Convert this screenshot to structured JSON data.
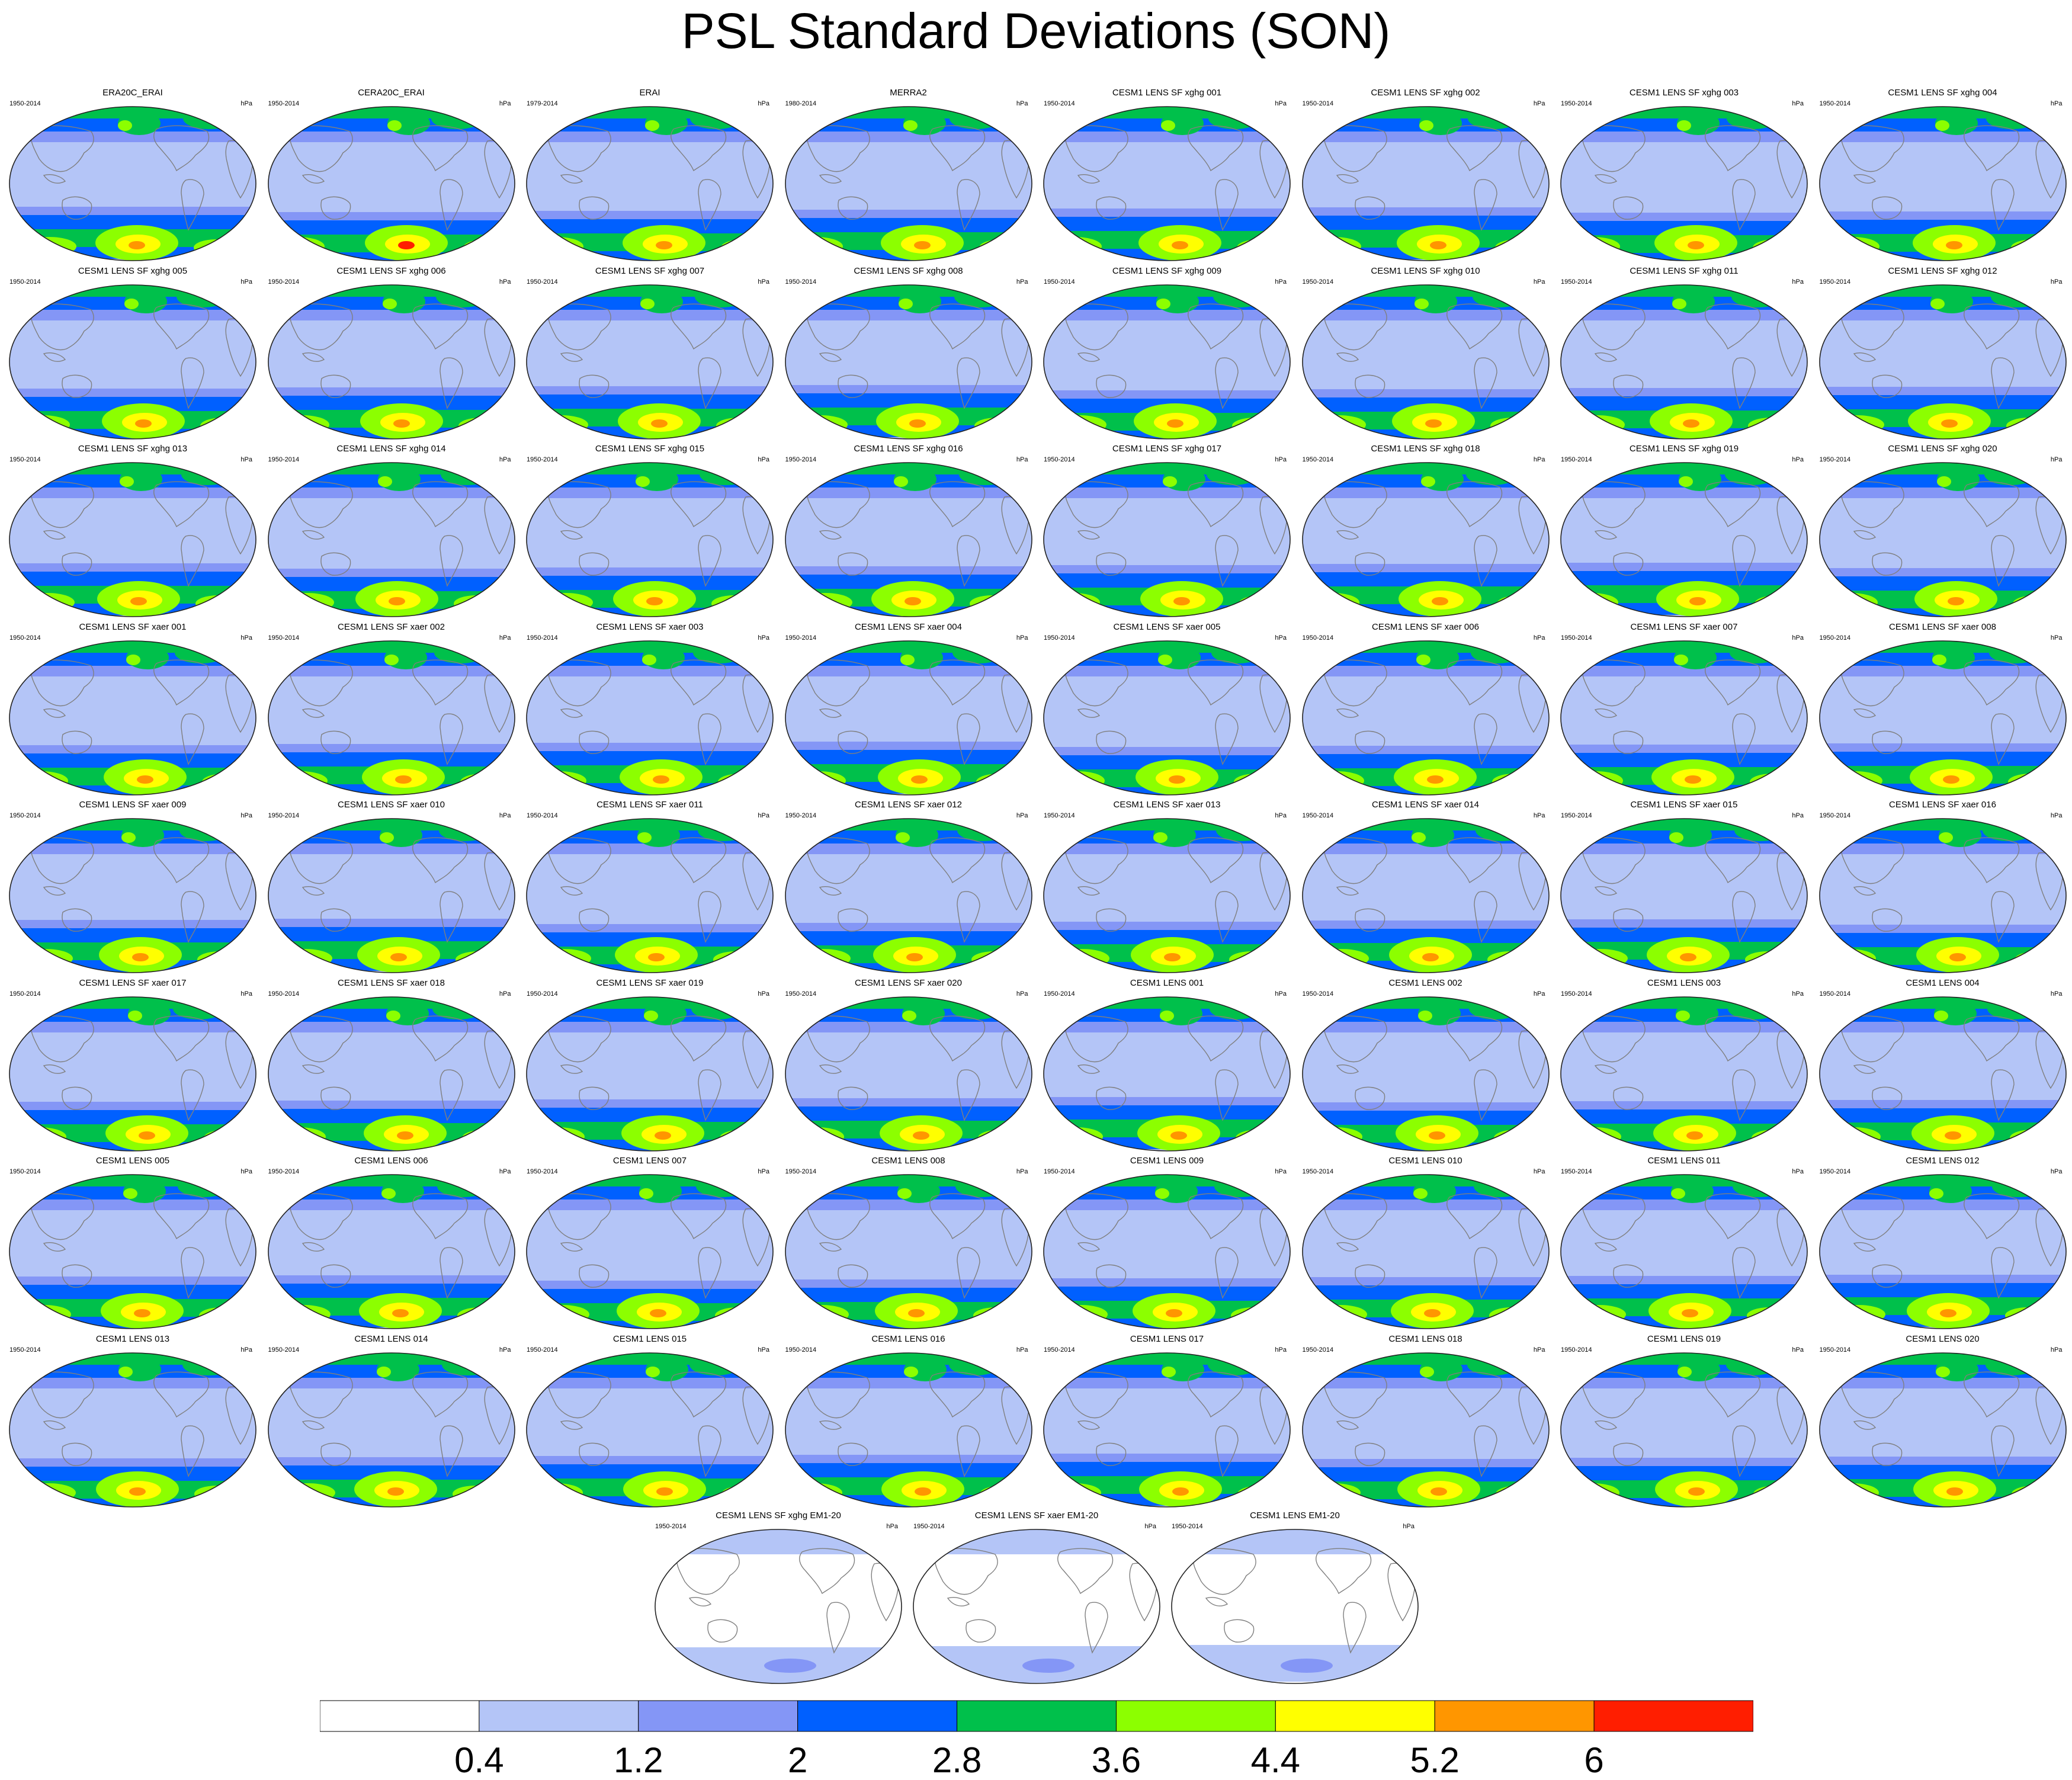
{
  "title": "PSL Standard Deviations (SON)",
  "units": "hPa",
  "colors": {
    "levels": [
      "#ffffff",
      "#b4c5f7",
      "#8496f6",
      "#0060ff",
      "#00c04b",
      "#8cff00",
      "#ffff00",
      "#ff9600",
      "#ff1e00"
    ],
    "coastline": "#7f7f7f"
  },
  "colorbar": {
    "labels": [
      "0.4",
      "1.2",
      "2",
      "2.8",
      "3.6",
      "4.4",
      "5.2",
      "6"
    ]
  },
  "chart_data": {
    "type": "heatmap",
    "title": "PSL Standard Deviations (SON)",
    "variable": "PSL",
    "season": "SON",
    "statistic": "Standard Deviation",
    "units": "hPa",
    "contour_levels": [
      0.4,
      1.2,
      2,
      2.8,
      3.6,
      4.4,
      5.2,
      6
    ],
    "panels": [
      {
        "name": "ERA20C_ERAI",
        "years": "1950-2014",
        "peak": 5.6
      },
      {
        "name": "CERA20C_ERAI",
        "years": "1950-2014",
        "peak": 6.2
      },
      {
        "name": "ERAI",
        "years": "1979-2014",
        "peak": 5.6
      },
      {
        "name": "MERRA2",
        "years": "1980-2014",
        "peak": 5.6
      },
      {
        "name": "CESM1 LENS SF xghg 001",
        "years": "1950-2014",
        "peak": 5.6
      },
      {
        "name": "CESM1 LENS SF xghg 002",
        "years": "1950-2014",
        "peak": 5.2
      },
      {
        "name": "CESM1 LENS SF xghg 003",
        "years": "1950-2014",
        "peak": 5.2
      },
      {
        "name": "CESM1 LENS SF xghg 004",
        "years": "1950-2014",
        "peak": 5.2
      },
      {
        "name": "CESM1 LENS SF xghg 005",
        "years": "1950-2014",
        "peak": 5.6
      },
      {
        "name": "CESM1 LENS SF xghg 006",
        "years": "1950-2014",
        "peak": 5.2
      },
      {
        "name": "CESM1 LENS SF xghg 007",
        "years": "1950-2014",
        "peak": 5.2
      },
      {
        "name": "CESM1 LENS SF xghg 008",
        "years": "1950-2014",
        "peak": 5.2
      },
      {
        "name": "CESM1 LENS SF xghg 009",
        "years": "1950-2014",
        "peak": 5.2
      },
      {
        "name": "CESM1 LENS SF xghg 010",
        "years": "1950-2014",
        "peak": 5.2
      },
      {
        "name": "CESM1 LENS SF xghg 011",
        "years": "1950-2014",
        "peak": 5.2
      },
      {
        "name": "CESM1 LENS SF xghg 012",
        "years": "1950-2014",
        "peak": 5.2
      },
      {
        "name": "CESM1 LENS SF xghg 013",
        "years": "1950-2014",
        "peak": 5.2
      },
      {
        "name": "CESM1 LENS SF xghg 014",
        "years": "1950-2014",
        "peak": 5.6
      },
      {
        "name": "CESM1 LENS SF xghg 015",
        "years": "1950-2014",
        "peak": 5.2
      },
      {
        "name": "CESM1 LENS SF xghg 016",
        "years": "1950-2014",
        "peak": 5.6
      },
      {
        "name": "CESM1 LENS SF xghg 017",
        "years": "1950-2014",
        "peak": 5.6
      },
      {
        "name": "CESM1 LENS SF xghg 018",
        "years": "1950-2014",
        "peak": 5.2
      },
      {
        "name": "CESM1 LENS SF xghg 019",
        "years": "1950-2014",
        "peak": 5.6
      },
      {
        "name": "CESM1 LENS SF xghg 020",
        "years": "1950-2014",
        "peak": 5.2
      },
      {
        "name": "CESM1 LENS SF xaer 001",
        "years": "1950-2014",
        "peak": 5.2
      },
      {
        "name": "CESM1 LENS SF xaer 002",
        "years": "1950-2014",
        "peak": 5.2
      },
      {
        "name": "CESM1 LENS SF xaer 003",
        "years": "1950-2014",
        "peak": 5.6
      },
      {
        "name": "CESM1 LENS SF xaer 004",
        "years": "1950-2014",
        "peak": 5.2
      },
      {
        "name": "CESM1 LENS SF xaer 005",
        "years": "1950-2014",
        "peak": 5.6
      },
      {
        "name": "CESM1 LENS SF xaer 006",
        "years": "1950-2014",
        "peak": 5.2
      },
      {
        "name": "CESM1 LENS SF xaer 007",
        "years": "1950-2014",
        "peak": 5.2
      },
      {
        "name": "CESM1 LENS SF xaer 008",
        "years": "1950-2014",
        "peak": 5.2
      },
      {
        "name": "CESM1 LENS SF xaer 009",
        "years": "1950-2014",
        "peak": 5.6
      },
      {
        "name": "CESM1 LENS SF xaer 010",
        "years": "1950-2014",
        "peak": 5.2
      },
      {
        "name": "CESM1 LENS SF xaer 011",
        "years": "1950-2014",
        "peak": 5.2
      },
      {
        "name": "CESM1 LENS SF xaer 012",
        "years": "1950-2014",
        "peak": 5.2
      },
      {
        "name": "CESM1 LENS SF xaer 013",
        "years": "1950-2014",
        "peak": 5.2
      },
      {
        "name": "CESM1 LENS SF xaer 014",
        "years": "1950-2014",
        "peak": 5.2
      },
      {
        "name": "CESM1 LENS SF xaer 015",
        "years": "1950-2014",
        "peak": 5.2
      },
      {
        "name": "CESM1 LENS SF xaer 016",
        "years": "1950-2014",
        "peak": 5.2
      },
      {
        "name": "CESM1 LENS SF xaer 017",
        "years": "1950-2014",
        "peak": 5.6
      },
      {
        "name": "CESM1 LENS SF xaer 018",
        "years": "1950-2014",
        "peak": 5.2
      },
      {
        "name": "CESM1 LENS SF xaer 019",
        "years": "1950-2014",
        "peak": 5.6
      },
      {
        "name": "CESM1 LENS SF xaer 020",
        "years": "1950-2014",
        "peak": 5.2
      },
      {
        "name": "CESM1 LENS 001",
        "years": "1950-2014",
        "peak": 5.2
      },
      {
        "name": "CESM1 LENS 002",
        "years": "1950-2014",
        "peak": 5.2
      },
      {
        "name": "CESM1 LENS 003",
        "years": "1950-2014",
        "peak": 5.2
      },
      {
        "name": "CESM1 LENS 004",
        "years": "1950-2014",
        "peak": 5.6
      },
      {
        "name": "CESM1 LENS 005",
        "years": "1950-2014",
        "peak": 5.6
      },
      {
        "name": "CESM1 LENS 006",
        "years": "1950-2014",
        "peak": 5.6
      },
      {
        "name": "CESM1 LENS 007",
        "years": "1950-2014",
        "peak": 5.6
      },
      {
        "name": "CESM1 LENS 008",
        "years": "1950-2014",
        "peak": 5.2
      },
      {
        "name": "CESM1 LENS 009",
        "years": "1950-2014",
        "peak": 5.2
      },
      {
        "name": "CESM1 LENS 010",
        "years": "1950-2014",
        "peak": 5.6
      },
      {
        "name": "CESM1 LENS 011",
        "years": "1950-2014",
        "peak": 5.2
      },
      {
        "name": "CESM1 LENS 012",
        "years": "1950-2014",
        "peak": 5.6
      },
      {
        "name": "CESM1 LENS 013",
        "years": "1950-2014",
        "peak": 5.6
      },
      {
        "name": "CESM1 LENS 014",
        "years": "1950-2014",
        "peak": 5.6
      },
      {
        "name": "CESM1 LENS 015",
        "years": "1950-2014",
        "peak": 5.2
      },
      {
        "name": "CESM1 LENS 016",
        "years": "1950-2014",
        "peak": 5.2
      },
      {
        "name": "CESM1 LENS 017",
        "years": "1950-2014",
        "peak": 5.2
      },
      {
        "name": "CESM1 LENS 018",
        "years": "1950-2014",
        "peak": 5.2
      },
      {
        "name": "CESM1 LENS 019",
        "years": "1950-2014",
        "peak": 5.2
      },
      {
        "name": "CESM1 LENS 020",
        "years": "1950-2014",
        "peak": 5.2
      },
      {
        "name": "CESM1 LENS SF xghg EM1-20",
        "years": "1950-2014",
        "peak": 1.2
      },
      {
        "name": "CESM1 LENS SF xaer EM1-20",
        "years": "1950-2014",
        "peak": 1.2
      },
      {
        "name": "CESM1 LENS EM1-20",
        "years": "1950-2014",
        "peak": 1.2
      }
    ]
  }
}
